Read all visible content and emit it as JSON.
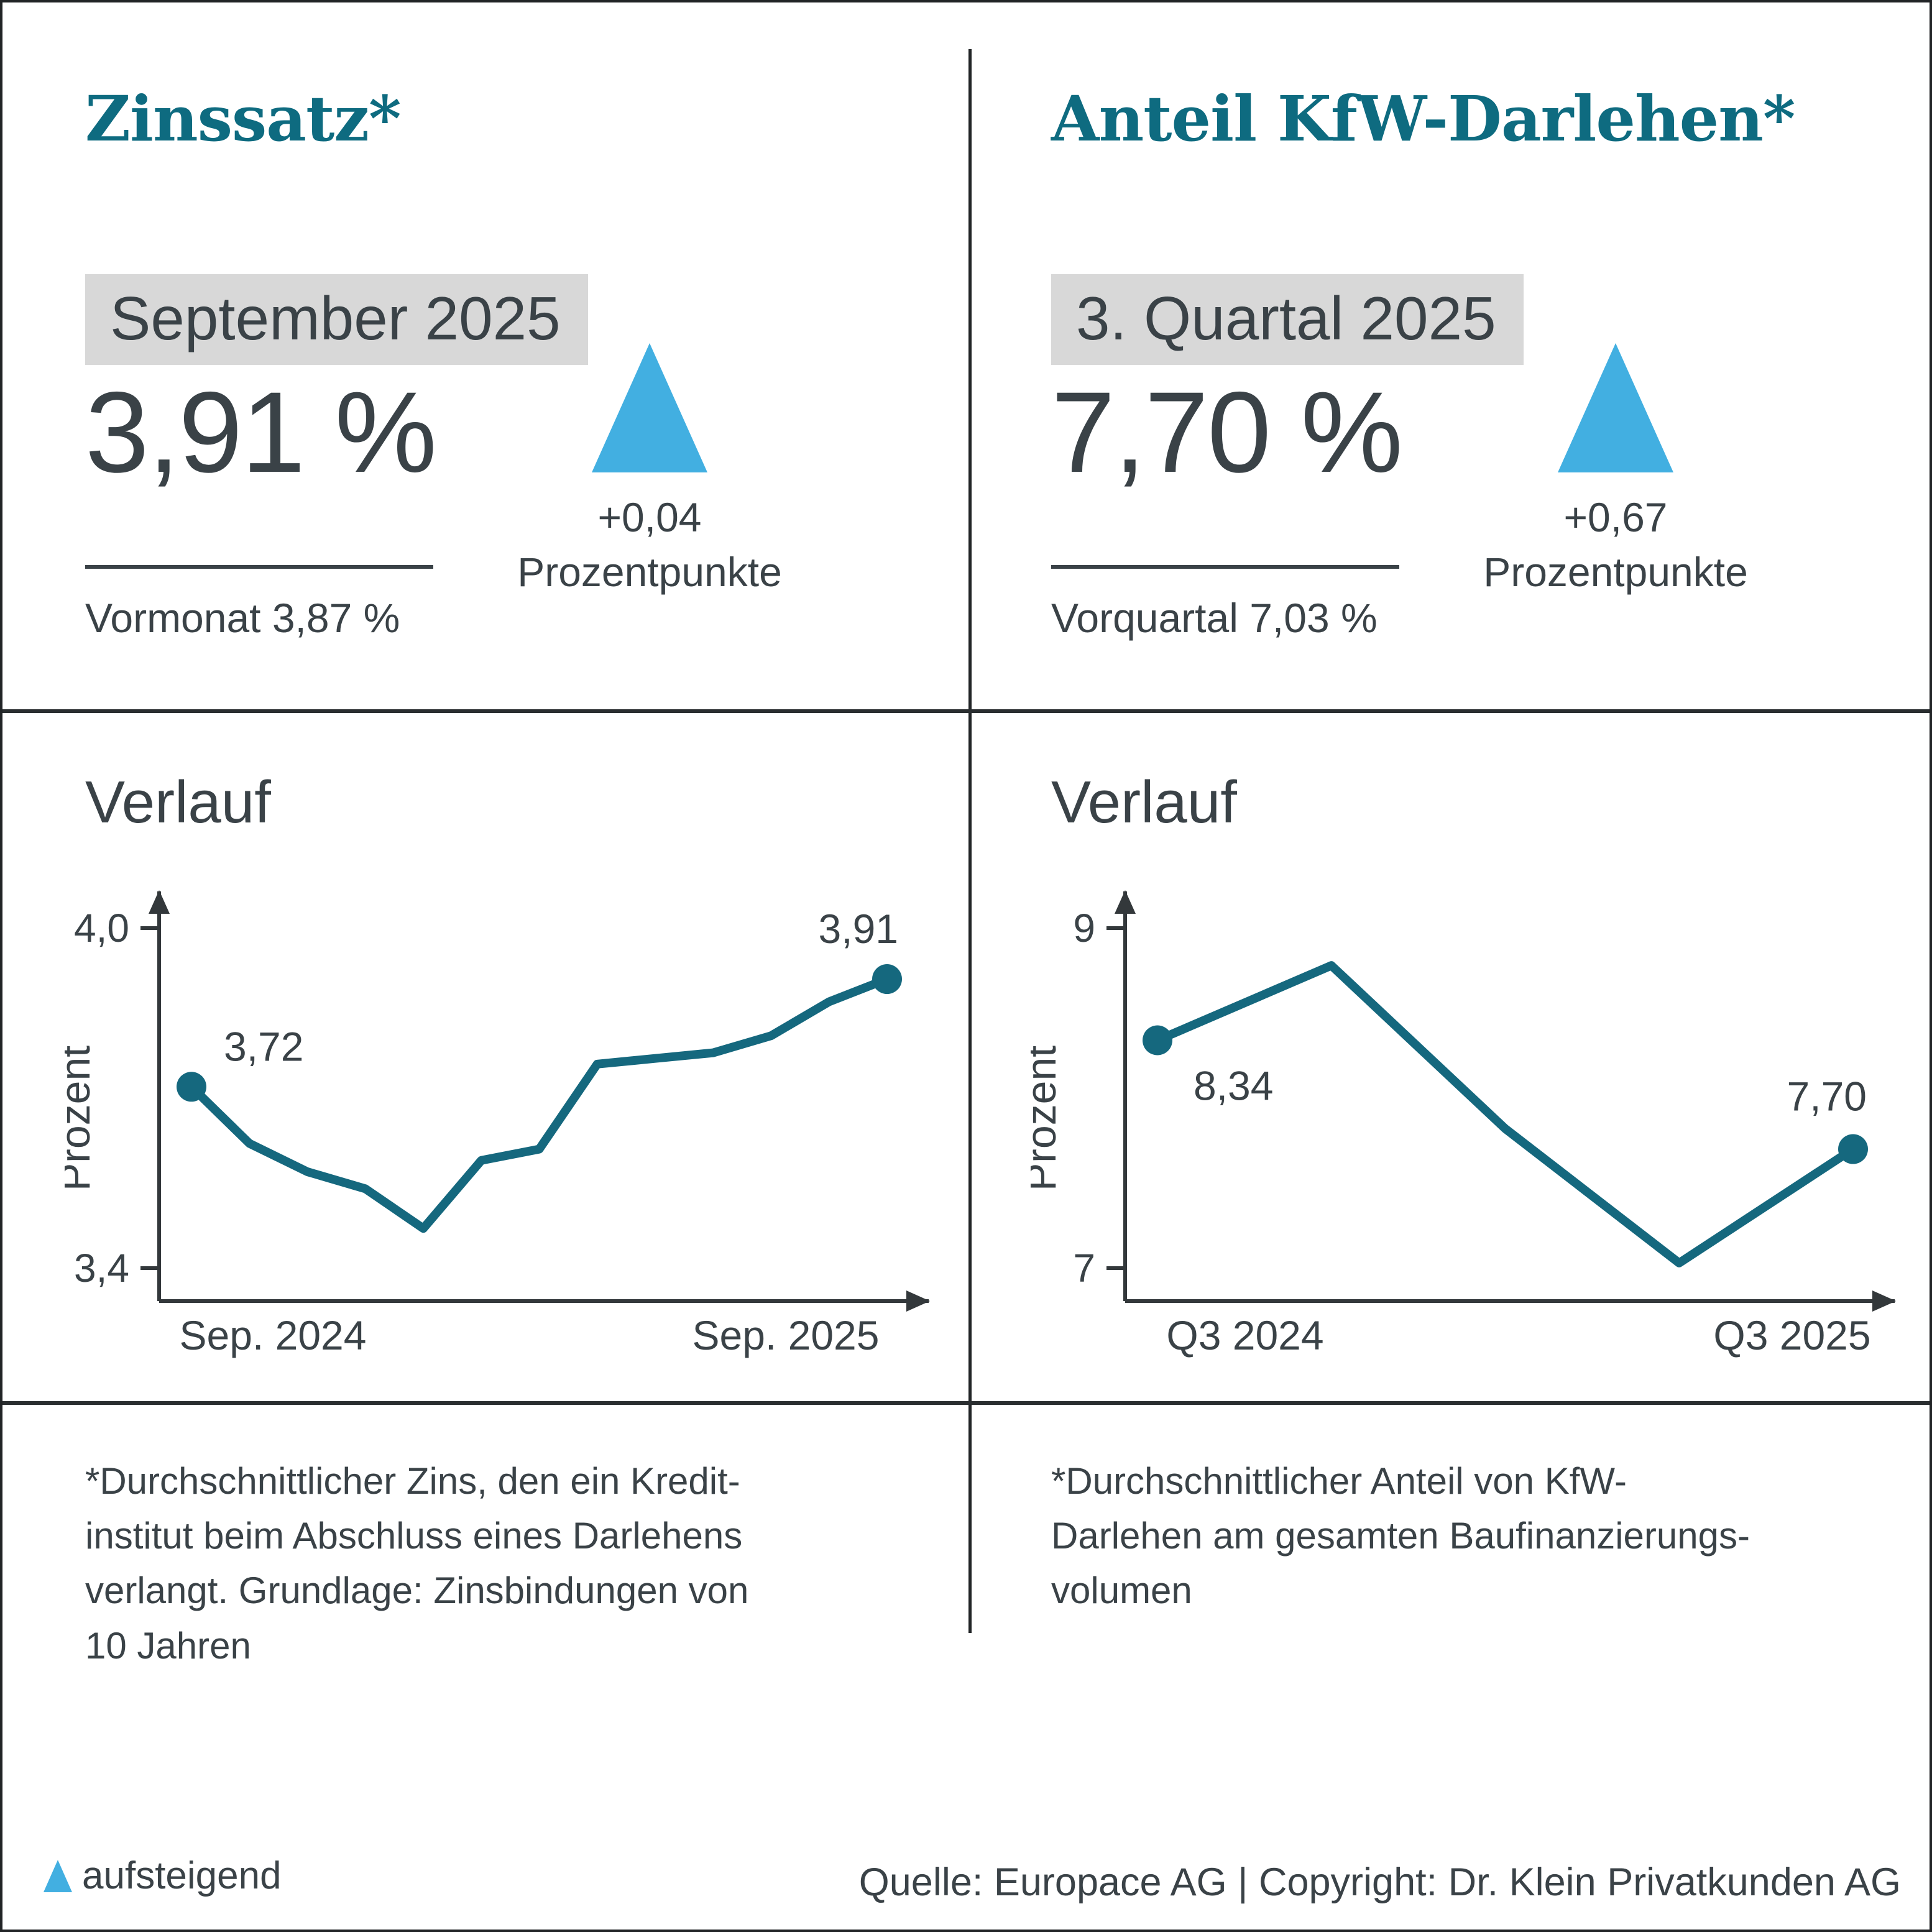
{
  "colors": {
    "accent_teal": "#0e6b80",
    "line_teal": "#15687e",
    "text_dark": "#3a4247",
    "highlight_bg": "#d8d8d8",
    "triangle_blue": "#42afe1",
    "divider_dark": "#212426"
  },
  "panels": [
    {
      "title": "Zinssatz*",
      "period_label": "September 2025",
      "value": "3,91 %",
      "change": "+0,04",
      "change_unit": "Prozentpunkte",
      "previous": "Vormonat 3,87 %",
      "trend_icon": "triangle-up",
      "verlauf_title": "Verlauf",
      "footnote_lines": [
        "*Durchschnittlicher Zins, den ein Kredit-",
        "institut beim Abschluss eines Darlehens",
        "verlangt. Grundlage: Zinsbindungen von",
        "10 Jahren"
      ]
    },
    {
      "title": "Anteil KfW-Darlehen*",
      "period_label": "3. Quartal 2025",
      "value": "7,70 %",
      "change": "+0,67",
      "change_unit": "Prozentpunkte",
      "previous": "Vorquartal 7,03 %",
      "trend_icon": "triangle-up",
      "verlauf_title": "Verlauf",
      "footnote_lines": [
        "*Durchschnittlicher Anteil von KfW-",
        "Darlehen am gesamten Baufinanzierungs-",
        "volumen"
      ]
    }
  ],
  "chart_data": [
    {
      "type": "line",
      "title": "Verlauf",
      "ylabel": "Prozent",
      "x_tick_labels": [
        "Sep. 2024",
        "Sep. 2025"
      ],
      "x_implied": [
        "Sep. 2024",
        "Okt. 2024",
        "Nov. 2024",
        "Dez. 2024",
        "Jan. 2025",
        "Feb. 2025",
        "Mär. 2025",
        "Apr. 2025",
        "Mai 2025",
        "Jun. 2025",
        "Jul. 2025",
        "Aug. 2025",
        "Sep. 2025"
      ],
      "values": [
        3.72,
        3.62,
        3.57,
        3.54,
        3.47,
        3.59,
        3.61,
        3.76,
        3.77,
        3.78,
        3.81,
        3.87,
        3.91
      ],
      "y_tick_values": [
        4.0,
        3.4
      ],
      "y_tick_labels": [
        "4,0",
        "3,4"
      ],
      "ylim": [
        3.34,
        4.07
      ],
      "grid": false,
      "first_point_label": "3,72",
      "last_point_label": "3,91"
    },
    {
      "type": "line",
      "title": "Verlauf",
      "ylabel": "Prozent",
      "x_tick_labels": [
        "Q3 2024",
        "Q3 2025"
      ],
      "x_implied": [
        "Q3 2024",
        "Q4 2024",
        "Q1 2025",
        "Q2 2025",
        "Q3 2025"
      ],
      "values": [
        8.34,
        8.78,
        7.82,
        7.03,
        7.7
      ],
      "y_tick_values": [
        9,
        7
      ],
      "y_tick_labels": [
        "9",
        "7"
      ],
      "ylim": [
        6.8,
        9.2
      ],
      "grid": false,
      "first_point_label": "8,34",
      "last_point_label": "7,70"
    }
  ],
  "legend": {
    "triangle_label": "aufsteigend"
  },
  "source": "Quelle: Europace AG | Copyright: Dr. Klein Privatkunden AG"
}
